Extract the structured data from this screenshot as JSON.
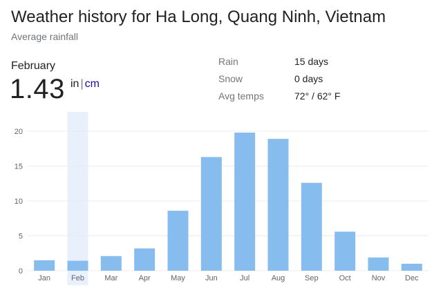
{
  "header": {
    "title": "Weather history for Ha Long, Quang Ninh, Vietnam",
    "subtitle": "Average rainfall"
  },
  "selected": {
    "month": "February",
    "value": "1.43",
    "unit_in": "in",
    "unit_separator": "|",
    "unit_cm": "cm"
  },
  "stats": [
    {
      "label": "Rain",
      "value": "15 days"
    },
    {
      "label": "Snow",
      "value": "0 days"
    },
    {
      "label": "Avg temps",
      "value": "72° / 62° F"
    }
  ],
  "colors": {
    "bar": "#86bdee",
    "highlight": "#e8f1fb",
    "grid": "#ececec",
    "tick_text": "#5f6368"
  },
  "chart_data": {
    "type": "bar",
    "categories": [
      "Jan",
      "Feb",
      "Mar",
      "Apr",
      "May",
      "Jun",
      "Jul",
      "Aug",
      "Sep",
      "Oct",
      "Nov",
      "Dec"
    ],
    "values": [
      1.5,
      1.43,
      2.1,
      3.2,
      8.6,
      16.3,
      19.8,
      18.9,
      12.6,
      5.6,
      1.9,
      1.0
    ],
    "yticks": [
      0,
      5,
      10,
      15,
      20
    ],
    "ylim": [
      0,
      20
    ],
    "highlighted_index": 1,
    "grid": true,
    "xlabel": "",
    "ylabel": ""
  }
}
